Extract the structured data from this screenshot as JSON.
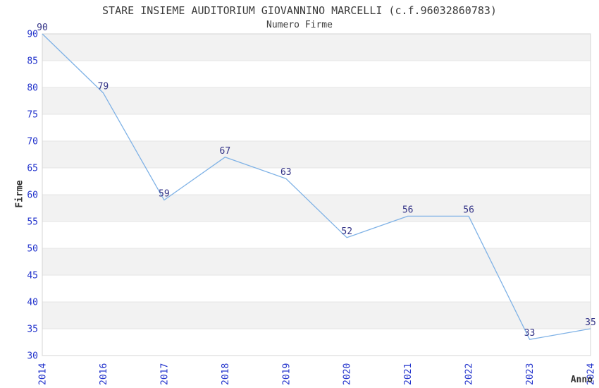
{
  "header": {
    "title": "STARE INSIEME AUDITORIUM GIOVANNINO MARCELLI (c.f.96032860783)",
    "subtitle": "Numero Firme"
  },
  "chart_data": {
    "type": "line",
    "title": "STARE INSIEME AUDITORIUM GIOVANNINO MARCELLI (c.f.96032860783)",
    "subtitle": "Numero Firme",
    "xlabel": "Anno",
    "ylabel": "Firme",
    "categories": [
      "2014",
      "2016",
      "2017",
      "2018",
      "2019",
      "2020",
      "2021",
      "2022",
      "2023",
      "2024"
    ],
    "values": [
      90,
      79,
      59,
      67,
      63,
      52,
      56,
      56,
      33,
      35
    ],
    "ylim": [
      30,
      90
    ],
    "ytick_step": 5,
    "yticks": [
      30,
      35,
      40,
      45,
      50,
      55,
      60,
      65,
      70,
      75,
      80,
      85,
      90
    ],
    "grid": "horizontal-bands-alternating",
    "legend": "none",
    "point_labels_visible": true,
    "x_tick_rotation_deg": 90,
    "colors": {
      "line": "#7fb2e6",
      "tick_labels": "#2233cc",
      "point_labels": "#323286",
      "band_gray": "#f2f2f2",
      "gridline": "#e4e4e4",
      "plot_border": "#d4d4d4",
      "title_text": "#3c3c3c",
      "axis_title_text": "#333333",
      "background": "#ffffff"
    }
  }
}
